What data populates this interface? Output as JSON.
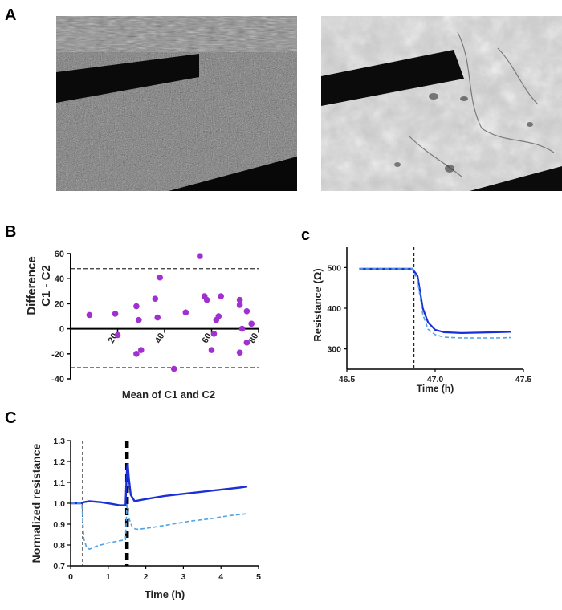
{
  "panels": {
    "a": "A",
    "b": "B",
    "c_small": "c",
    "c_big": "C"
  },
  "micrographs": {
    "left": "left-micrograph",
    "right": "right-micrograph"
  },
  "colors": {
    "scatter": "#a030d0",
    "solid": "#1a2fd6",
    "dashed": "#4fa3e6",
    "ref_line": "#333333"
  },
  "chart_data": [
    {
      "id": "bland_altman",
      "type": "scatter",
      "xlabel": "Mean of C1 and C2",
      "ylabel_line1": "Difference",
      "ylabel_line2": "C1 - C2",
      "xlim": [
        0,
        80
      ],
      "ylim": [
        -40,
        60
      ],
      "xticks": [
        "20",
        "40",
        "60",
        "80"
      ],
      "yticks": [
        "-40",
        "-20",
        "0",
        "20",
        "40",
        "60"
      ],
      "hlines": [
        48,
        -31
      ],
      "points": [
        [
          8,
          11
        ],
        [
          19,
          12
        ],
        [
          20,
          -5
        ],
        [
          28,
          18
        ],
        [
          29,
          7
        ],
        [
          28,
          -20
        ],
        [
          30,
          -17
        ],
        [
          36,
          24
        ],
        [
          37,
          9
        ],
        [
          38,
          41
        ],
        [
          44,
          -32
        ],
        [
          49,
          13
        ],
        [
          55,
          58
        ],
        [
          57,
          26
        ],
        [
          58,
          23
        ],
        [
          60,
          -17
        ],
        [
          61,
          -4
        ],
        [
          62,
          7
        ],
        [
          63,
          10
        ],
        [
          64,
          26
        ],
        [
          72,
          23
        ],
        [
          72,
          19
        ],
        [
          73,
          0
        ],
        [
          72,
          -19
        ],
        [
          75,
          14
        ],
        [
          75,
          -11
        ],
        [
          77,
          4
        ]
      ]
    },
    {
      "id": "resistance",
      "type": "line",
      "xlabel": "Time (h)",
      "ylabel": "Resistance (Ω)",
      "xlim": [
        46.5,
        47.5
      ],
      "ylim": [
        250,
        550
      ],
      "xticks": [
        "46.5",
        "47.0",
        "47.5"
      ],
      "yticks": [
        "300",
        "400",
        "500"
      ],
      "vline": 46.88,
      "series": [
        {
          "style": "solid",
          "points": [
            [
              46.57,
              497
            ],
            [
              46.87,
              497
            ],
            [
              46.9,
              480
            ],
            [
              46.93,
              400
            ],
            [
              46.96,
              365
            ],
            [
              47.0,
              347
            ],
            [
              47.05,
              341
            ],
            [
              47.15,
              339
            ],
            [
              47.25,
              340
            ],
            [
              47.35,
              341
            ],
            [
              47.43,
              342
            ]
          ]
        },
        {
          "style": "dashed",
          "points": [
            [
              46.57,
              497
            ],
            [
              46.87,
              497
            ],
            [
              46.9,
              470
            ],
            [
              46.93,
              385
            ],
            [
              46.96,
              348
            ],
            [
              47.0,
              335
            ],
            [
              47.05,
              329
            ],
            [
              47.15,
              327
            ],
            [
              47.25,
              327
            ],
            [
              47.35,
              327
            ],
            [
              47.43,
              328
            ]
          ]
        }
      ]
    },
    {
      "id": "normalized",
      "type": "line",
      "xlabel": "Time (h)",
      "ylabel": "Normalized resistance",
      "xlim": [
        0,
        5
      ],
      "ylim": [
        0.7,
        1.3
      ],
      "xticks": [
        "0",
        "1",
        "2",
        "3",
        "4",
        "5"
      ],
      "yticks": [
        "0.7",
        "0.8",
        "0.9",
        "1.0",
        "1.1",
        "1.2",
        "1.3"
      ],
      "vline_thin": 0.32,
      "vline_thick": 1.5,
      "series": [
        {
          "style": "solid",
          "points": [
            [
              0,
              1.0
            ],
            [
              0.3,
              1.0
            ],
            [
              0.35,
              1.005
            ],
            [
              0.5,
              1.01
            ],
            [
              0.8,
              1.005
            ],
            [
              1.1,
              0.997
            ],
            [
              1.3,
              0.99
            ],
            [
              1.46,
              0.99
            ],
            [
              1.5,
              1.17
            ],
            [
              1.52,
              1.19
            ],
            [
              1.55,
              1.12
            ],
            [
              1.6,
              1.04
            ],
            [
              1.7,
              1.01
            ],
            [
              2.0,
              1.02
            ],
            [
              2.5,
              1.035
            ],
            [
              3.0,
              1.045
            ],
            [
              3.5,
              1.055
            ],
            [
              4.0,
              1.065
            ],
            [
              4.5,
              1.075
            ],
            [
              4.7,
              1.08
            ]
          ]
        },
        {
          "style": "dashed",
          "points": [
            [
              0,
              1.0
            ],
            [
              0.3,
              1.0
            ],
            [
              0.35,
              0.83
            ],
            [
              0.42,
              0.79
            ],
            [
              0.5,
              0.78
            ],
            [
              0.7,
              0.795
            ],
            [
              1.0,
              0.81
            ],
            [
              1.3,
              0.82
            ],
            [
              1.46,
              0.825
            ],
            [
              1.5,
              1.0
            ],
            [
              1.55,
              0.93
            ],
            [
              1.65,
              0.88
            ],
            [
              1.8,
              0.875
            ],
            [
              2.2,
              0.885
            ],
            [
              2.7,
              0.9
            ],
            [
              3.2,
              0.915
            ],
            [
              3.7,
              0.925
            ],
            [
              4.2,
              0.94
            ],
            [
              4.7,
              0.95
            ]
          ]
        }
      ]
    }
  ]
}
